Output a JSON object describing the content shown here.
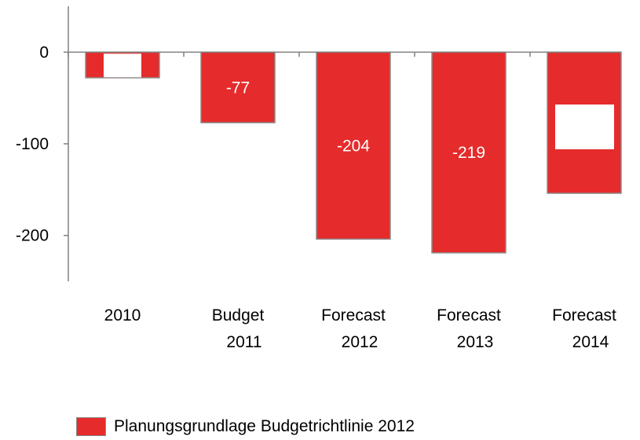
{
  "chart_data": {
    "type": "bar",
    "categories": [
      [
        "2010"
      ],
      [
        "Budget",
        "2011"
      ],
      [
        "Forecast",
        "2012"
      ],
      [
        "Forecast",
        "2013"
      ],
      [
        "Forecast",
        "2014"
      ]
    ],
    "series": [
      {
        "name": "Planungsgrundlage Budgetrichtlinie 2012",
        "values": [
          -28,
          -77,
          -204,
          -219,
          -154
        ],
        "data_labels": [
          "",
          "-77",
          "-204",
          "-219",
          ""
        ]
      }
    ],
    "ylim": [
      -250,
      50
    ],
    "yticks": [
      0,
      -100,
      -200
    ],
    "ytick_labels": [
      "0",
      "-100",
      "-200"
    ],
    "title": "",
    "xlabel": "",
    "ylabel": "",
    "grid": false,
    "legend_position": "bottom",
    "colors": {
      "bar": "#e52b2b",
      "bar_edge": "#8c8c8c",
      "axis": "#808080"
    }
  }
}
